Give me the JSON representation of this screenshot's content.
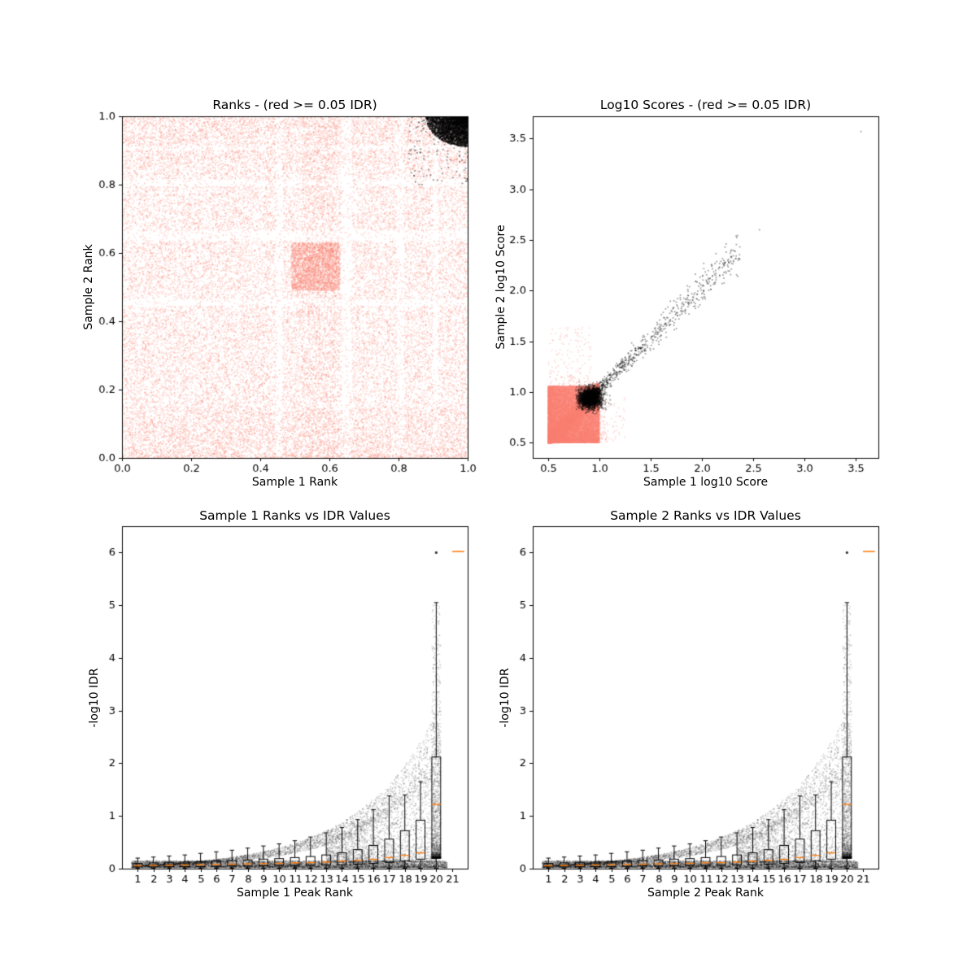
{
  "figure": {
    "background": "#ffffff"
  },
  "colors": {
    "irreproducible": "#FA8072",
    "reproducible": "#000000",
    "median": "#FF7F0E",
    "axis": "#000000",
    "text": "#000000"
  },
  "chart_data": [
    {
      "id": "ranks",
      "type": "scatter",
      "title": "Ranks - (red >= 0.05 IDR)",
      "xlabel": "Sample 1 Rank",
      "ylabel": "Sample 2 Rank",
      "xlim": [
        0.0,
        1.0
      ],
      "ylim": [
        0.0,
        1.0
      ],
      "xticks": [
        0.0,
        0.2,
        0.4,
        0.6,
        0.8,
        1.0
      ],
      "xtick_labels": [
        "0.0",
        "0.2",
        "0.4",
        "0.6",
        "0.8",
        "1.0"
      ],
      "yticks": [
        0.0,
        0.2,
        0.4,
        0.6,
        0.8,
        1.0
      ],
      "ytick_labels": [
        "0.0",
        "0.2",
        "0.4",
        "0.6",
        "0.8",
        "1.0"
      ],
      "grid": false,
      "series": [
        {
          "name": "IDR >= 0.05",
          "color": "#FA8072",
          "n_points": 36000,
          "description": "salmon rank pairs covering the whole unit square with blocky banded structure, denser block near (0.5-0.63, 0.5-0.63) and along bottom and top edges"
        },
        {
          "name": "IDR < 0.05",
          "color": "#000000",
          "n_points": 3200,
          "cluster_center": [
            0.97,
            0.98
          ],
          "cluster_extent_x": 0.12,
          "cluster_extent_y": 0.09,
          "description": "black reproducible peaks packed into the top-right corner"
        }
      ]
    },
    {
      "id": "scores",
      "type": "scatter",
      "title": "Log10 Scores - (red >= 0.05 IDR)",
      "xlabel": "Sample 1 log10 Score",
      "ylabel": "Sample 2 log10 Score",
      "xlim": [
        0.35,
        3.72
      ],
      "ylim": [
        0.35,
        3.72
      ],
      "xticks": [
        0.5,
        1.0,
        1.5,
        2.0,
        2.5,
        3.0,
        3.5
      ],
      "xtick_labels": [
        "0.5",
        "1.0",
        "1.5",
        "2.0",
        "2.5",
        "3.0",
        "3.5"
      ],
      "yticks": [
        0.5,
        1.0,
        1.5,
        2.0,
        2.5,
        3.0,
        3.5
      ],
      "ytick_labels": [
        "0.5",
        "1.0",
        "1.5",
        "2.0",
        "2.5",
        "3.0",
        "3.5"
      ],
      "grid": false,
      "series": [
        {
          "name": "IDR >= 0.05",
          "color": "#FA8072",
          "n_points": 24000,
          "x_range": [
            0.5,
            1.05
          ],
          "y_range": [
            0.5,
            1.1
          ],
          "description": "dense salmon block of low scores in the lower-left, faint spray up to y~1.65"
        },
        {
          "name": "IDR < 0.05",
          "color": "#000000",
          "n_points": 3000,
          "cluster_center": [
            0.91,
            0.94
          ],
          "diagonal_from": [
            1.0,
            1.02
          ],
          "diagonal_to": [
            2.35,
            2.38
          ],
          "outliers": [
            [
              2.56,
              2.6
            ],
            [
              3.55,
              3.57
            ]
          ],
          "description": "black ball at ~(0.9,0.95) with a noisy 1:1 diagonal tail and two isolated high points"
        }
      ]
    },
    {
      "id": "idr1",
      "type": "box+scatter",
      "title": "Sample 1 Ranks vs IDR Values",
      "xlabel": "Sample 1 Peak Rank",
      "ylabel": "-log10 IDR",
      "xlim": [
        0,
        22
      ],
      "ylim": [
        0,
        6.5
      ],
      "xticks": [
        1,
        2,
        3,
        4,
        5,
        6,
        7,
        8,
        9,
        10,
        11,
        12,
        13,
        14,
        15,
        16,
        17,
        18,
        19,
        20,
        21
      ],
      "xtick_labels": [
        "1",
        "2",
        "3",
        "4",
        "5",
        "6",
        "7",
        "8",
        "9",
        "10",
        "11",
        "12",
        "13",
        "14",
        "15",
        "16",
        "17",
        "18",
        "19",
        "20",
        "21"
      ],
      "yticks": [
        0,
        1,
        2,
        3,
        4,
        5,
        6
      ],
      "ytick_labels": [
        "0",
        "1",
        "2",
        "3",
        "4",
        "5",
        "6"
      ],
      "grid": false,
      "seed": 11,
      "scatter": {
        "color": "#000000",
        "n_points": 14000,
        "envelope": "max -log10 IDR ~= 0.042*exp(0.2*rank)",
        "dense_band_y": [
          0.02,
          0.15
        ],
        "max_point": [
          20,
          6.0
        ]
      },
      "box": {
        "positions": [
          1,
          2,
          3,
          4,
          5,
          6,
          7,
          8,
          9,
          10,
          11,
          12,
          13,
          14,
          15,
          16,
          17,
          18,
          19,
          20
        ],
        "q1": [
          0.03,
          0.03,
          0.035,
          0.04,
          0.04,
          0.045,
          0.05,
          0.05,
          0.055,
          0.06,
          0.06,
          0.065,
          0.07,
          0.075,
          0.085,
          0.1,
          0.12,
          0.15,
          0.18,
          0.22
        ],
        "median": [
          0.055,
          0.06,
          0.065,
          0.07,
          0.075,
          0.08,
          0.085,
          0.09,
          0.095,
          0.1,
          0.11,
          0.115,
          0.125,
          0.14,
          0.155,
          0.175,
          0.21,
          0.25,
          0.3,
          1.22
        ],
        "q3": [
          0.1,
          0.11,
          0.12,
          0.125,
          0.135,
          0.145,
          0.155,
          0.165,
          0.18,
          0.19,
          0.21,
          0.23,
          0.26,
          0.3,
          0.36,
          0.44,
          0.56,
          0.72,
          0.92,
          2.12
        ],
        "whisker_low": [
          0.01,
          0.01,
          0.01,
          0.01,
          0.01,
          0.01,
          0.01,
          0.01,
          0.01,
          0.01,
          0.01,
          0.01,
          0.01,
          0.01,
          0.01,
          0.01,
          0.01,
          0.01,
          0.01,
          0.01
        ],
        "whisker_high": [
          0.2,
          0.22,
          0.24,
          0.26,
          0.29,
          0.32,
          0.35,
          0.39,
          0.43,
          0.47,
          0.53,
          0.6,
          0.68,
          0.78,
          0.93,
          1.12,
          1.38,
          1.4,
          1.65,
          5.05
        ],
        "box_half_width": 0.28,
        "median_color": "#FF7F0E",
        "flier": [
          20,
          6.0
        ],
        "clipped_median_marker": {
          "x": 21.4,
          "y": 6.02,
          "half_width": 0.38
        }
      }
    },
    {
      "id": "idr2",
      "type": "box+scatter",
      "title": "Sample 2 Ranks vs IDR Values",
      "xlabel": "Sample 2 Peak Rank",
      "ylabel": "-log10 IDR",
      "xlim": [
        0,
        22
      ],
      "ylim": [
        0,
        6.5
      ],
      "xticks": [
        1,
        2,
        3,
        4,
        5,
        6,
        7,
        8,
        9,
        10,
        11,
        12,
        13,
        14,
        15,
        16,
        17,
        18,
        19,
        20,
        21
      ],
      "xtick_labels": [
        "1",
        "2",
        "3",
        "4",
        "5",
        "6",
        "7",
        "8",
        "9",
        "10",
        "11",
        "12",
        "13",
        "14",
        "15",
        "16",
        "17",
        "18",
        "19",
        "20",
        "21"
      ],
      "yticks": [
        0,
        1,
        2,
        3,
        4,
        5,
        6
      ],
      "ytick_labels": [
        "0",
        "1",
        "2",
        "3",
        "4",
        "5",
        "6"
      ],
      "grid": false,
      "seed": 11,
      "scatter": {
        "color": "#000000",
        "n_points": 14000,
        "envelope": "max -log10 IDR ~= 0.042*exp(0.2*rank)",
        "dense_band_y": [
          0.02,
          0.15
        ],
        "max_point": [
          20,
          6.0
        ]
      },
      "box": {
        "positions": [
          1,
          2,
          3,
          4,
          5,
          6,
          7,
          8,
          9,
          10,
          11,
          12,
          13,
          14,
          15,
          16,
          17,
          18,
          19,
          20
        ],
        "q1": [
          0.03,
          0.03,
          0.035,
          0.04,
          0.04,
          0.045,
          0.05,
          0.05,
          0.055,
          0.06,
          0.06,
          0.065,
          0.07,
          0.075,
          0.085,
          0.1,
          0.12,
          0.15,
          0.18,
          0.22
        ],
        "median": [
          0.055,
          0.06,
          0.065,
          0.07,
          0.075,
          0.08,
          0.085,
          0.09,
          0.095,
          0.1,
          0.11,
          0.115,
          0.125,
          0.14,
          0.155,
          0.175,
          0.21,
          0.25,
          0.3,
          1.22
        ],
        "q3": [
          0.1,
          0.11,
          0.12,
          0.125,
          0.135,
          0.145,
          0.155,
          0.165,
          0.18,
          0.19,
          0.21,
          0.23,
          0.26,
          0.3,
          0.36,
          0.44,
          0.56,
          0.72,
          0.92,
          2.12
        ],
        "whisker_low": [
          0.01,
          0.01,
          0.01,
          0.01,
          0.01,
          0.01,
          0.01,
          0.01,
          0.01,
          0.01,
          0.01,
          0.01,
          0.01,
          0.01,
          0.01,
          0.01,
          0.01,
          0.01,
          0.01,
          0.01
        ],
        "whisker_high": [
          0.2,
          0.22,
          0.24,
          0.26,
          0.29,
          0.32,
          0.35,
          0.39,
          0.43,
          0.47,
          0.53,
          0.6,
          0.68,
          0.78,
          0.93,
          1.12,
          1.38,
          1.4,
          1.65,
          5.05
        ],
        "box_half_width": 0.28,
        "median_color": "#FF7F0E",
        "flier": [
          20,
          6.0
        ],
        "clipped_median_marker": {
          "x": 21.4,
          "y": 6.02,
          "half_width": 0.38
        }
      }
    }
  ]
}
